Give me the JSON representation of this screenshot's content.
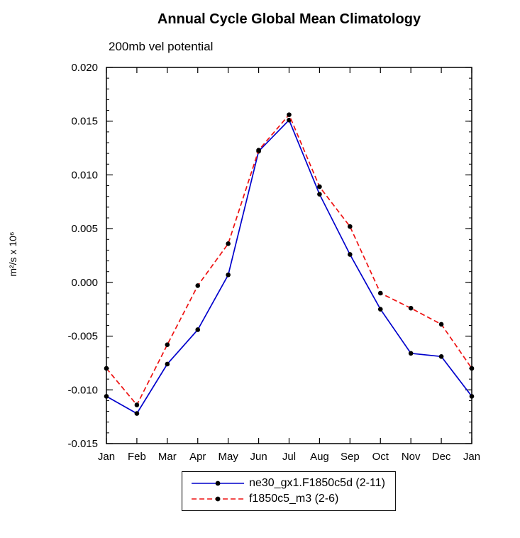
{
  "chart_data": {
    "type": "line",
    "title": "Annual Cycle Global Mean Climatology",
    "subtitle": "200mb vel potential",
    "ylabel": "m²/s x 10⁶",
    "categories": [
      "Jan",
      "Feb",
      "Mar",
      "Apr",
      "May",
      "Jun",
      "Jul",
      "Aug",
      "Sep",
      "Oct",
      "Nov",
      "Dec",
      "Jan"
    ],
    "ylim": [
      -0.015,
      0.02
    ],
    "yticks": [
      -0.015,
      -0.01,
      -0.005,
      0.0,
      0.005,
      0.01,
      0.015,
      0.02
    ],
    "y_minor_step": 0.001,
    "grid": false,
    "legend_position": "bottom",
    "marker_color": "#000000",
    "series": [
      {
        "name": "ne30_gx1.F1850c5d (2-11)",
        "color": "#0000cc",
        "style": "solid",
        "values": [
          -0.0106,
          -0.0122,
          -0.0076,
          -0.0044,
          0.0007,
          0.0122,
          0.0151,
          0.0082,
          0.0026,
          -0.0025,
          -0.0066,
          -0.0069,
          -0.0106
        ]
      },
      {
        "name": "f1850c5_m3 (2-6)",
        "color": "#ee1111",
        "style": "dashed",
        "values": [
          -0.008,
          -0.0114,
          -0.0058,
          -0.0003,
          0.0036,
          0.0123,
          0.0156,
          0.0089,
          0.0052,
          -0.001,
          -0.0024,
          -0.0039,
          -0.008
        ]
      }
    ]
  }
}
